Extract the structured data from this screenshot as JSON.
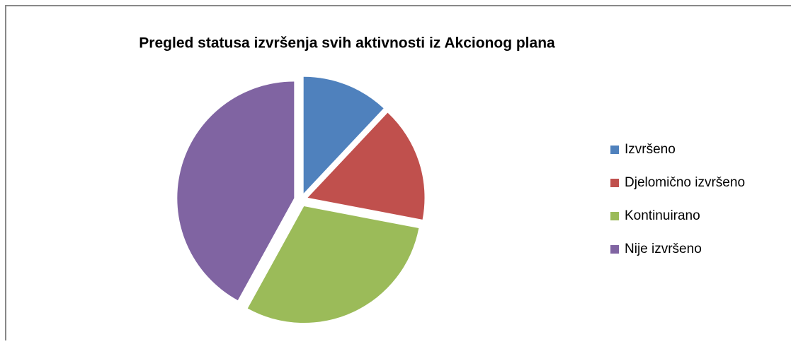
{
  "chart_data": {
    "type": "pie",
    "title": "Pregled statusa izvršenja svih aktivnosti iz Akcionog plana",
    "categories": [
      "Izvršeno",
      "Djelomično izvršeno",
      "Kontinuirano",
      "Nije izvršeno"
    ],
    "values": [
      12,
      16,
      30,
      42
    ],
    "colors": [
      "#4f81bd",
      "#c0504d",
      "#9bbb59",
      "#8064a2"
    ],
    "legend": "right"
  }
}
